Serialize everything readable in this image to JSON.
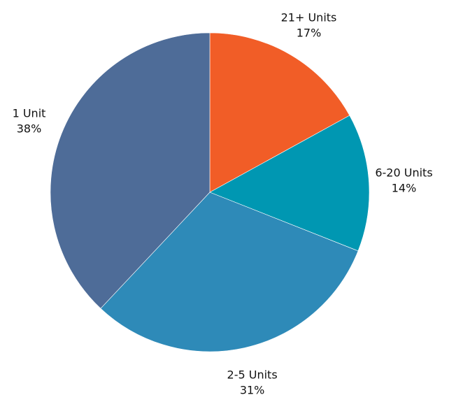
{
  "chart_data": {
    "type": "pie",
    "title": "",
    "start_angle_deg": 0,
    "direction": "clockwise",
    "slices": [
      {
        "label": "21+ Units",
        "value": 17,
        "value_label": "17%",
        "color": "#F15D27"
      },
      {
        "label": "6-20 Units",
        "value": 14,
        "value_label": "14%",
        "color": "#0097B2"
      },
      {
        "label": "2-5 Units",
        "value": 31,
        "value_label": "31%",
        "color": "#2E8AB8"
      },
      {
        "label": "1 Unit",
        "value": 38,
        "value_label": "38%",
        "color": "#4E6C98"
      }
    ]
  }
}
